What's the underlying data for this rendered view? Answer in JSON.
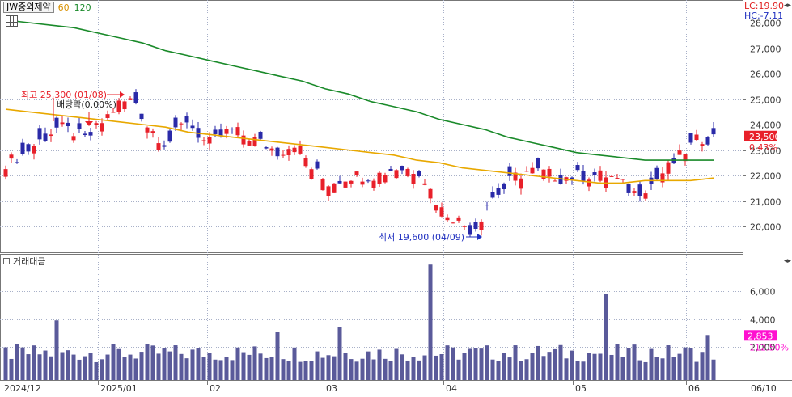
{
  "legend": {
    "name": "JW중외제약",
    "ma60": "60",
    "ma120": "120"
  },
  "right_stats": {
    "lc": "LC:19.90",
    "hc": "HC:-7.11"
  },
  "price_badge": {
    "price": "23,500",
    "change": "0.43%",
    "bg": "#e8202a"
  },
  "volume_panel": {
    "title": "거래대금",
    "badge_value": "2,853",
    "badge_pct": "112.50%",
    "badge_bg": "#ff10d0"
  },
  "annotations": {
    "high": "최고 25,300 (01/08)",
    "dividend": "배당락(0.00%)",
    "low": "최저 19,600 (04/09)"
  },
  "colors": {
    "up": "#e8202a",
    "down": "#2a2aa8",
    "ma60": "#e8a800",
    "ma120": "#1a8a2a",
    "volume": "#5a5a9a",
    "grid": "#a8b0c8"
  },
  "chart_data": {
    "type": "candlestick",
    "price_axis": {
      "min": 19500,
      "max": 28300,
      "ticks": [
        "20,000",
        "21,000",
        "22,000",
        "23,000",
        "24,000",
        "25,000",
        "26,000",
        "27,000",
        "28,000"
      ]
    },
    "volume_axis": {
      "ticks": [
        "2,000",
        "4,000",
        "6,000"
      ]
    },
    "x_labels": [
      "2024/12",
      "2025/01",
      "02",
      "03",
      "04",
      "05",
      "06",
      "06/10"
    ],
    "series": [
      {
        "name": "60",
        "values": [
          24.6,
          24.5,
          24.4,
          24.3,
          24.2,
          24.1,
          24.0,
          23.9,
          23.7,
          23.6,
          23.5,
          23.4,
          23.3,
          23.2,
          23.1,
          23.0,
          22.9,
          22.8,
          22.6,
          22.5,
          22.3,
          22.2,
          22.1,
          22.0,
          21.9,
          21.8,
          21.7,
          21.7,
          21.8,
          21.8,
          21.8,
          21.9
        ]
      },
      {
        "name": "120",
        "values": [
          28.1,
          28.0,
          27.9,
          27.8,
          27.6,
          27.4,
          27.2,
          26.9,
          26.7,
          26.5,
          26.3,
          26.1,
          25.9,
          25.7,
          25.4,
          25.2,
          24.9,
          24.7,
          24.5,
          24.2,
          24.0,
          23.8,
          23.5,
          23.3,
          23.1,
          22.9,
          22.8,
          22.7,
          22.6,
          22.6,
          22.6,
          22.6
        ]
      }
    ]
  }
}
